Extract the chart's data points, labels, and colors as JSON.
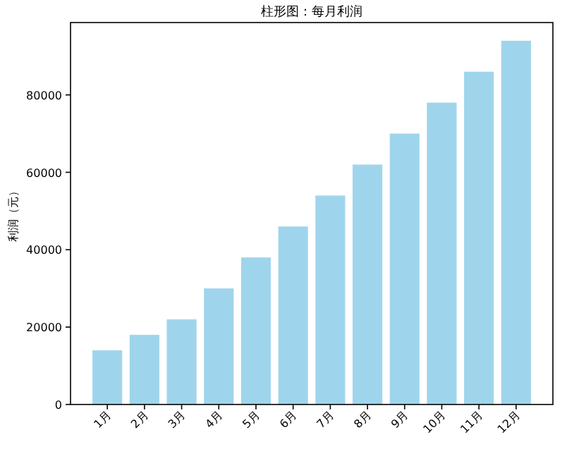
{
  "chart_data": {
    "type": "bar",
    "title": "柱形图：每月利润",
    "ylabel": "利润（元）",
    "categories": [
      "1月",
      "2月",
      "3月",
      "4月",
      "5月",
      "6月",
      "7月",
      "8月",
      "9月",
      "10月",
      "11月",
      "12月"
    ],
    "values": [
      14000,
      18000,
      22000,
      30000,
      38000,
      46000,
      54000,
      62000,
      70000,
      78000,
      86000,
      94000
    ],
    "color": "#9fd5ec",
    "ylim": [
      0,
      98700
    ],
    "yticks": [
      0,
      20000,
      40000,
      60000,
      80000
    ]
  }
}
